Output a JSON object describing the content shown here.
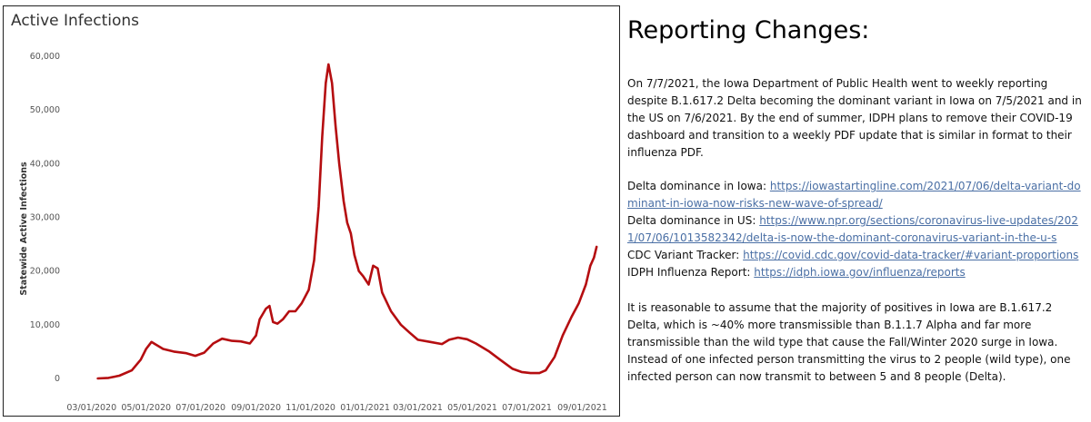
{
  "text_panel": {
    "heading": "Reporting Changes:",
    "paragraph1": "On 7/7/2021, the Iowa Department of Public Health went to weekly reporting despite B.1.617.2 Delta becoming the dominant variant in Iowa on 7/5/2021 and in the US on 7/6/2021. By the end of summer, IDPH plans to remove their COVID-19 dashboard and transition to a weekly PDF update that is similar in format to their influenza PDF.",
    "links": [
      {
        "label": "Delta dominance in Iowa: ",
        "url": "https://iowastartingline.com/2021/07/06/delta-variant-dominant-in-iowa-now-risks-new-wave-of-spread/"
      },
      {
        "label": "Delta dominance in US: ",
        "url": "https://www.npr.org/sections/coronavirus-live-updates/2021/07/06/1013582342/delta-is-now-the-dominant-coronavirus-variant-in-the-u-s"
      },
      {
        "label": "CDC Variant Tracker: ",
        "url": "https://covid.cdc.gov/covid-data-tracker/#variant-proportions"
      },
      {
        "label": "IDPH Influenza Report: ",
        "url": "https://idph.iowa.gov/influenza/reports"
      }
    ],
    "paragraph2": "It is reasonable to assume that the majority of positives in Iowa are B.1.617.2 Delta, which is ~40% more transmissible than B.1.1.7 Alpha and far more transmissible than the wild type that cause the Fall/Winter 2020 surge in Iowa. Instead of one infected person transmitting the virus to 2 people (wild type), one infected person can now transmit to between 5 and 8 people (Delta)."
  },
  "chart_data": {
    "type": "line",
    "title": "Active Infections",
    "xlabel": "",
    "ylabel": "Statewide Active Infections",
    "ylim": [
      0,
      60000
    ],
    "xlim": [
      "2020-02-15",
      "2021-09-30"
    ],
    "y_ticks": [
      0,
      10000,
      20000,
      30000,
      40000,
      50000,
      60000
    ],
    "y_tick_labels": [
      "0",
      "10,000",
      "20,000",
      "30,000",
      "40,000",
      "50,000",
      "60,000"
    ],
    "x_ticks": [
      "2020-03-01",
      "2020-05-01",
      "2020-07-01",
      "2020-09-01",
      "2020-11-01",
      "2021-01-01",
      "2021-03-01",
      "2021-05-01",
      "2021-07-01",
      "2021-09-01"
    ],
    "x_tick_labels": [
      "03/01/2020",
      "05/01/2020",
      "07/01/2020",
      "09/01/2020",
      "11/01/2020",
      "01/01/2021",
      "03/01/2021",
      "05/01/2021",
      "07/01/2021",
      "09/01/2021"
    ],
    "grid": false,
    "line_color": "#b50d10",
    "series": [
      {
        "points": [
          [
            "2020-03-08",
            0
          ],
          [
            "2020-03-20",
            100
          ],
          [
            "2020-04-01",
            500
          ],
          [
            "2020-04-15",
            1500
          ],
          [
            "2020-04-25",
            3500
          ],
          [
            "2020-05-01",
            5500
          ],
          [
            "2020-05-07",
            6800
          ],
          [
            "2020-05-12",
            6300
          ],
          [
            "2020-05-20",
            5500
          ],
          [
            "2020-06-01",
            5000
          ],
          [
            "2020-06-15",
            4700
          ],
          [
            "2020-06-25",
            4200
          ],
          [
            "2020-07-05",
            4800
          ],
          [
            "2020-07-15",
            6500
          ],
          [
            "2020-07-25",
            7400
          ],
          [
            "2020-08-05",
            7000
          ],
          [
            "2020-08-15",
            6900
          ],
          [
            "2020-08-25",
            6500
          ],
          [
            "2020-09-01",
            8000
          ],
          [
            "2020-09-05",
            11000
          ],
          [
            "2020-09-12",
            13000
          ],
          [
            "2020-09-16",
            13500
          ],
          [
            "2020-09-20",
            10500
          ],
          [
            "2020-09-25",
            10200
          ],
          [
            "2020-10-01",
            11000
          ],
          [
            "2020-10-08",
            12500
          ],
          [
            "2020-10-15",
            12500
          ],
          [
            "2020-10-22",
            14000
          ],
          [
            "2020-10-30",
            16500
          ],
          [
            "2020-11-05",
            22000
          ],
          [
            "2020-11-10",
            32000
          ],
          [
            "2020-11-14",
            45000
          ],
          [
            "2020-11-18",
            55000
          ],
          [
            "2020-11-21",
            58500
          ],
          [
            "2020-11-25",
            55000
          ],
          [
            "2020-11-29",
            47000
          ],
          [
            "2020-12-03",
            40000
          ],
          [
            "2020-12-08",
            33000
          ],
          [
            "2020-12-12",
            29000
          ],
          [
            "2020-12-16",
            27000
          ],
          [
            "2020-12-20",
            23000
          ],
          [
            "2020-12-25",
            20000
          ],
          [
            "2020-12-30",
            19000
          ],
          [
            "2021-01-05",
            17500
          ],
          [
            "2021-01-10",
            21000
          ],
          [
            "2021-01-15",
            20500
          ],
          [
            "2021-01-20",
            16000
          ],
          [
            "2021-01-30",
            12500
          ],
          [
            "2021-02-10",
            10000
          ],
          [
            "2021-02-20",
            8500
          ],
          [
            "2021-03-01",
            7200
          ],
          [
            "2021-03-15",
            6800
          ],
          [
            "2021-03-28",
            6400
          ],
          [
            "2021-04-05",
            7200
          ],
          [
            "2021-04-15",
            7600
          ],
          [
            "2021-04-25",
            7300
          ],
          [
            "2021-05-05",
            6500
          ],
          [
            "2021-05-20",
            5000
          ],
          [
            "2021-06-01",
            3500
          ],
          [
            "2021-06-15",
            1800
          ],
          [
            "2021-06-25",
            1200
          ],
          [
            "2021-07-05",
            1000
          ],
          [
            "2021-07-15",
            1000
          ],
          [
            "2021-07-22",
            1500
          ],
          [
            "2021-08-01",
            4000
          ],
          [
            "2021-08-10",
            8000
          ],
          [
            "2021-08-20",
            11500
          ],
          [
            "2021-08-28",
            14000
          ],
          [
            "2021-09-05",
            17500
          ],
          [
            "2021-09-10",
            21000
          ],
          [
            "2021-09-14",
            22500
          ],
          [
            "2021-09-17",
            24500
          ]
        ]
      }
    ]
  }
}
